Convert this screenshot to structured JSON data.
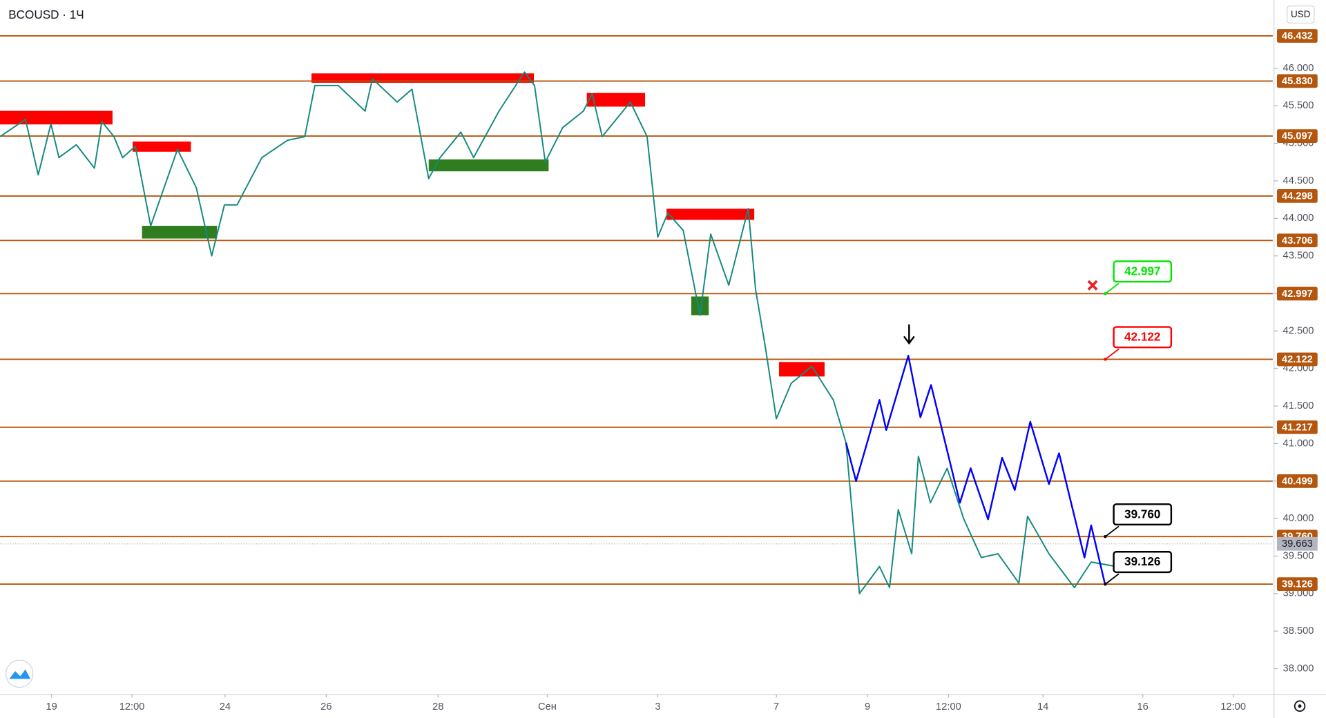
{
  "chart_data": {
    "type": "line",
    "title": "BCOUSD · 1Ч",
    "currency": "USD",
    "ylim": [
      37.66,
      46.91
    ],
    "yticks": [
      {
        "value": 38,
        "label": "38.000"
      },
      {
        "value": 38.5,
        "label": "38.500"
      },
      {
        "value": 39,
        "label": "39.000"
      },
      {
        "value": 39.5,
        "label": "39.500"
      },
      {
        "value": 40,
        "label": "40.000"
      },
      {
        "value": 40.5,
        "label": "40.500"
      },
      {
        "value": 41,
        "label": "41.000"
      },
      {
        "value": 41.5,
        "label": "41.500"
      },
      {
        "value": 42,
        "label": "42.000"
      },
      {
        "value": 42.5,
        "label": "42.500"
      },
      {
        "value": 43,
        "label": "43.000"
      },
      {
        "value": 43.5,
        "label": "43.500"
      },
      {
        "value": 44,
        "label": "44.000"
      },
      {
        "value": 44.5,
        "label": "44.500"
      },
      {
        "value": 45,
        "label": "45.000"
      },
      {
        "value": 45.5,
        "label": "45.500"
      },
      {
        "value": 46,
        "label": "46.000"
      }
    ],
    "xlim": [
      0,
      190
    ],
    "xticks": [
      {
        "value": 7.7,
        "label": "19"
      },
      {
        "value": 19.7,
        "label": "12:00"
      },
      {
        "value": 33.6,
        "label": "24"
      },
      {
        "value": 48.7,
        "label": "26"
      },
      {
        "value": 65.4,
        "label": "28"
      },
      {
        "value": 81.7,
        "label": "Сен"
      },
      {
        "value": 98.2,
        "label": "3"
      },
      {
        "value": 115.9,
        "label": "7"
      },
      {
        "value": 129.5,
        "label": "9"
      },
      {
        "value": 141.6,
        "label": "12:00"
      },
      {
        "value": 155.7,
        "label": "14"
      },
      {
        "value": 170.6,
        "label": "16"
      },
      {
        "value": 184.1,
        "label": "12:00"
      }
    ],
    "level_color": "#b4560e",
    "levels": [
      {
        "value": 46.432,
        "label": "46.432"
      },
      {
        "value": 45.83,
        "label": "45.830"
      },
      {
        "value": 45.097,
        "label": "45.097"
      },
      {
        "value": 44.298,
        "label": "44.298"
      },
      {
        "value": 43.706,
        "label": "43.706"
      },
      {
        "value": 42.997,
        "label": "42.997"
      },
      {
        "value": 42.122,
        "label": "42.122"
      },
      {
        "value": 41.217,
        "label": "41.217"
      },
      {
        "value": 40.499,
        "label": "40.499"
      },
      {
        "value": 39.76,
        "label": "39.760"
      },
      {
        "value": 39.126,
        "label": "39.126"
      }
    ],
    "last_price": {
      "value": 39.663,
      "label": "39.663",
      "color": "#b2b5be"
    },
    "zones": [
      {
        "x0": 0,
        "x1": 16.8,
        "y0": 45.252,
        "y1": 45.433,
        "color": "#ff0000"
      },
      {
        "x0": 19.8,
        "x1": 28.5,
        "y0": 44.888,
        "y1": 45.024,
        "color": "#ff0000"
      },
      {
        "x0": 46.5,
        "x1": 79.7,
        "y0": 45.807,
        "y1": 45.932,
        "color": "#ff0000"
      },
      {
        "x0": 87.6,
        "x1": 96.3,
        "y0": 45.489,
        "y1": 45.671,
        "color": "#ff0000"
      },
      {
        "x0": 99.5,
        "x1": 112.6,
        "y0": 43.98,
        "y1": 44.128,
        "color": "#ff0000"
      },
      {
        "x0": 116.3,
        "x1": 123.1,
        "y0": 41.893,
        "y1": 42.086,
        "color": "#ff0000"
      },
      {
        "x0": 21.2,
        "x1": 32.4,
        "y0": 43.731,
        "y1": 43.901,
        "color": "#2e7d1f"
      },
      {
        "x0": 64,
        "x1": 81.9,
        "y0": 44.627,
        "y1": 44.786,
        "color": "#2e7d1f"
      },
      {
        "x0": 103.2,
        "x1": 105.8,
        "y0": 42.71,
        "y1": 42.959,
        "color": "#2e7d1f"
      }
    ],
    "price": {
      "color": "#138a7e",
      "x": [
        0,
        3.8,
        5.7,
        7.6,
        8.8,
        11.4,
        14.1,
        15.2,
        17.0,
        18.3,
        20.2,
        22.5,
        26.5,
        29.3,
        31.6,
        33.5,
        35.4,
        39.1,
        42.9,
        45.5,
        47.0,
        50.5,
        54.5,
        55.6,
        59.3,
        61.5,
        64.0,
        65.7,
        68.8,
        70.7,
        74.5,
        78.3,
        79.8,
        81.4,
        84.0,
        87.1,
        88.4,
        89.9,
        94.1,
        96.6,
        98.2,
        99.7,
        102.0,
        104.5,
        106.1,
        108.8,
        111.7,
        112.8,
        114.3,
        115.9,
        118.1,
        121.2,
        124.4,
        126.3,
        128.3,
        131.3,
        132.8,
        134.1,
        136.1,
        137.1,
        138.9,
        141.4,
        143.9,
        146.5,
        149.0,
        152.1,
        153.4,
        156.6,
        160.4,
        162.9,
        166.7
      ],
      "values": [
        45.09,
        45.32,
        44.58,
        45.26,
        44.81,
        44.98,
        44.67,
        45.29,
        45.09,
        44.81,
        44.96,
        43.9,
        44.92,
        44.41,
        43.5,
        44.18,
        44.18,
        44.81,
        45.04,
        45.09,
        45.77,
        45.77,
        45.43,
        45.86,
        45.55,
        45.72,
        44.53,
        44.81,
        45.15,
        44.81,
        45.43,
        45.95,
        45.77,
        44.75,
        45.21,
        45.43,
        45.66,
        45.09,
        45.55,
        45.09,
        43.75,
        44.07,
        43.84,
        42.71,
        43.79,
        43.11,
        44.13,
        43.05,
        42.26,
        41.33,
        41.8,
        42.03,
        41.58,
        41.01,
        39.0,
        39.36,
        39.08,
        40.12,
        39.53,
        40.83,
        40.21,
        40.67,
        39.99,
        39.48,
        39.53,
        39.14,
        40.03,
        39.53,
        39.08,
        39.42,
        39.36
      ]
    },
    "projection": {
      "color": "#0000ff",
      "x": [
        126.3,
        127.8,
        131.3,
        132.3,
        135.6,
        137.4,
        139.0,
        143.3,
        144.9,
        147.5,
        149.6,
        151.5,
        153.8,
        156.6,
        158.1,
        161.9,
        162.9,
        165.0
      ],
      "values": [
        41.01,
        40.5,
        41.58,
        41.18,
        42.17,
        41.35,
        41.78,
        40.21,
        40.67,
        39.99,
        40.81,
        40.38,
        41.29,
        40.46,
        40.87,
        39.48,
        39.91,
        39.11
      ]
    },
    "callouts": [
      {
        "x": 165,
        "value": 42.997,
        "label": "42.997",
        "color": "#00e600"
      },
      {
        "x": 165,
        "value": 42.122,
        "label": "42.122",
        "color": "#ff0000"
      },
      {
        "x": 165,
        "value": 39.76,
        "label": "39.760",
        "color": "#000000"
      },
      {
        "x": 165,
        "value": 39.126,
        "label": "39.126",
        "color": "#000000"
      }
    ]
  }
}
